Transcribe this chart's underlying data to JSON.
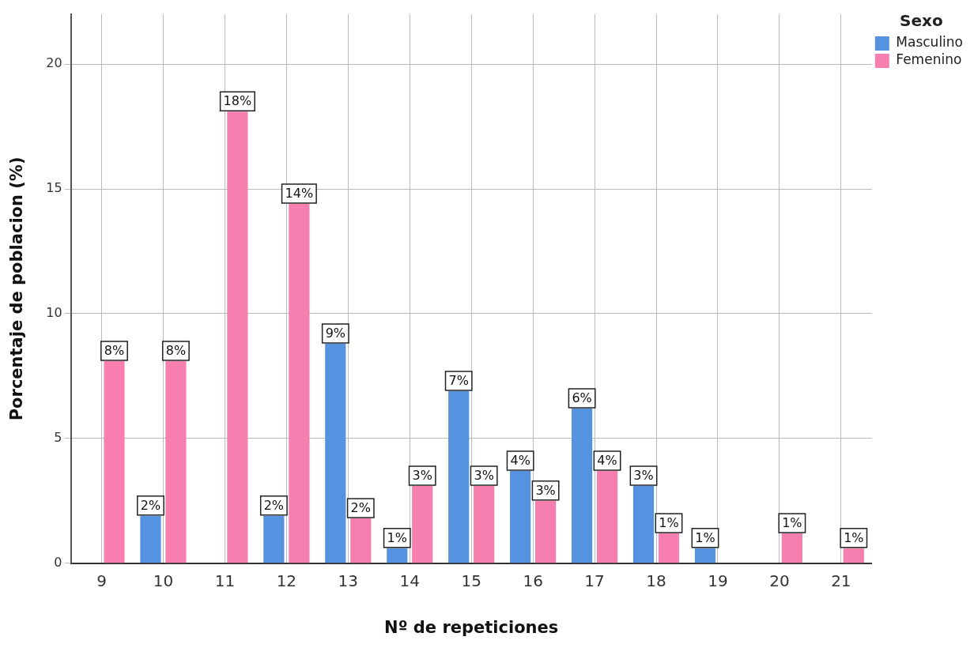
{
  "chart_data": {
    "type": "bar",
    "xlabel": "Nº de repeticiones",
    "ylabel": "Porcentaje de poblacion (%)",
    "legend_title": "Sexo",
    "legend": "top right",
    "grid": true,
    "categories": [
      "9",
      "10",
      "11",
      "12",
      "13",
      "14",
      "15",
      "16",
      "17",
      "18",
      "19",
      "20",
      "21"
    ],
    "ylim": [
      0,
      22
    ],
    "yticks": [
      0,
      5,
      10,
      15,
      20
    ],
    "series": [
      {
        "name": "Masculino",
        "color": "#5592e0",
        "values": [
          null,
          1.9,
          null,
          1.9,
          8.8,
          0.6,
          6.9,
          3.7,
          6.2,
          3.1,
          0.6,
          null,
          null
        ],
        "value_labels": [
          null,
          "2%",
          null,
          "2%",
          "9%",
          "1%",
          "7%",
          "4%",
          "6%",
          "3%",
          "1%",
          null,
          null
        ]
      },
      {
        "name": "Femenino",
        "color": "#f77fb0",
        "values": [
          8.1,
          8.1,
          18.1,
          14.4,
          1.8,
          3.1,
          3.1,
          2.5,
          3.7,
          1.2,
          null,
          1.2,
          0.6
        ],
        "value_labels": [
          "8%",
          "8%",
          "18%",
          "14%",
          "2%",
          "3%",
          "3%",
          "3%",
          "4%",
          "1%",
          null,
          "1%",
          "1%"
        ]
      }
    ]
  }
}
